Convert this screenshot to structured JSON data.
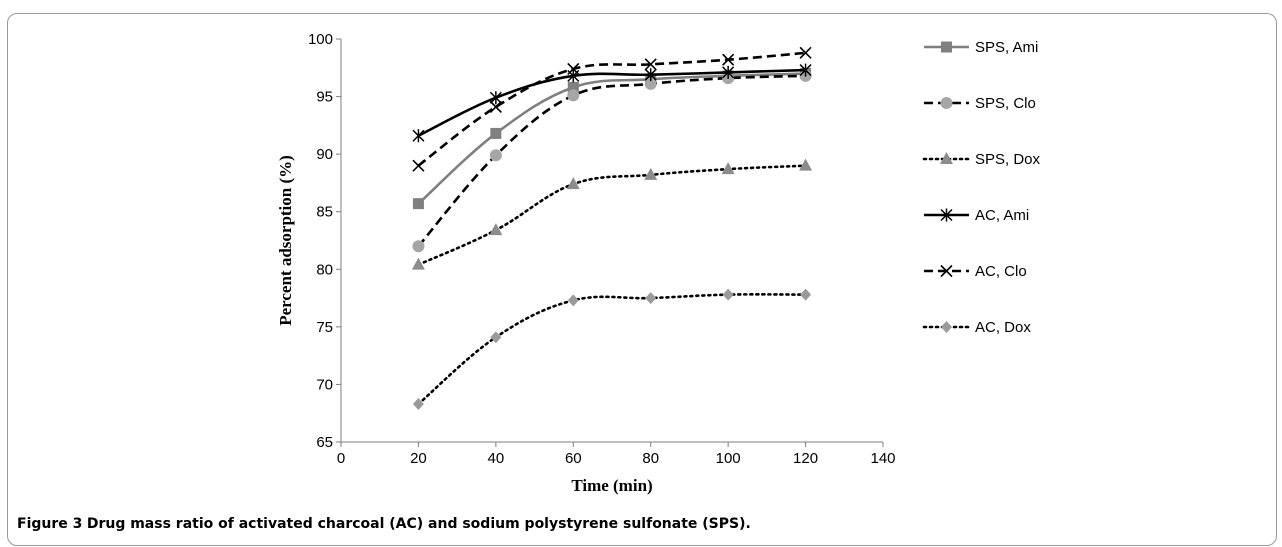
{
  "chart_data": {
    "type": "line",
    "title": "",
    "xlabel": "Time (min)",
    "ylabel": "Percent adsorption (%)",
    "xlim": [
      0,
      140
    ],
    "ylim": [
      65,
      100
    ],
    "xticks": [
      "0",
      "20",
      "40",
      "60",
      "80",
      "100",
      "120",
      "140"
    ],
    "yticks": [
      "65",
      "70",
      "75",
      "80",
      "85",
      "90",
      "95",
      "100"
    ],
    "grid": false,
    "legend_position": "right",
    "x": [
      20,
      40,
      60,
      80,
      100,
      120
    ],
    "series": [
      {
        "name": "SPS, Ami",
        "values": [
          85.7,
          91.8,
          95.8,
          96.5,
          96.8,
          97.0
        ],
        "color": "#7f7f7f",
        "line": "solid",
        "marker": "square",
        "marker_color": "#808080"
      },
      {
        "name": "SPS, Clo",
        "values": [
          82.0,
          89.9,
          95.1,
          96.1,
          96.6,
          96.8
        ],
        "color": "#000000",
        "line": "dash",
        "marker": "circle",
        "marker_color": "#a6a6a6"
      },
      {
        "name": "SPS, Dox",
        "values": [
          80.4,
          83.4,
          87.4,
          88.2,
          88.7,
          89.0
        ],
        "color": "#000000",
        "line": "dot",
        "marker": "triangle",
        "marker_color": "#8c8c8c"
      },
      {
        "name": "AC, Ami",
        "values": [
          91.6,
          94.9,
          96.8,
          96.9,
          97.1,
          97.3
        ],
        "color": "#000000",
        "line": "solid",
        "marker": "star",
        "marker_color": "#000000"
      },
      {
        "name": "AC, Clo",
        "values": [
          89.0,
          94.1,
          97.4,
          97.8,
          98.2,
          98.8
        ],
        "color": "#000000",
        "line": "dash",
        "marker": "x",
        "marker_color": "#000000"
      },
      {
        "name": "AC, Dox",
        "values": [
          68.3,
          74.1,
          77.3,
          77.5,
          77.8,
          77.8
        ],
        "color": "#000000",
        "line": "dot",
        "marker": "diamond",
        "marker_color": "#9a9a9a"
      }
    ]
  },
  "caption": {
    "label": "Figure 3",
    "text": "Drug mass ratio of activated charcoal (AC) and sodium polystyrene sulfonate (SPS)."
  }
}
